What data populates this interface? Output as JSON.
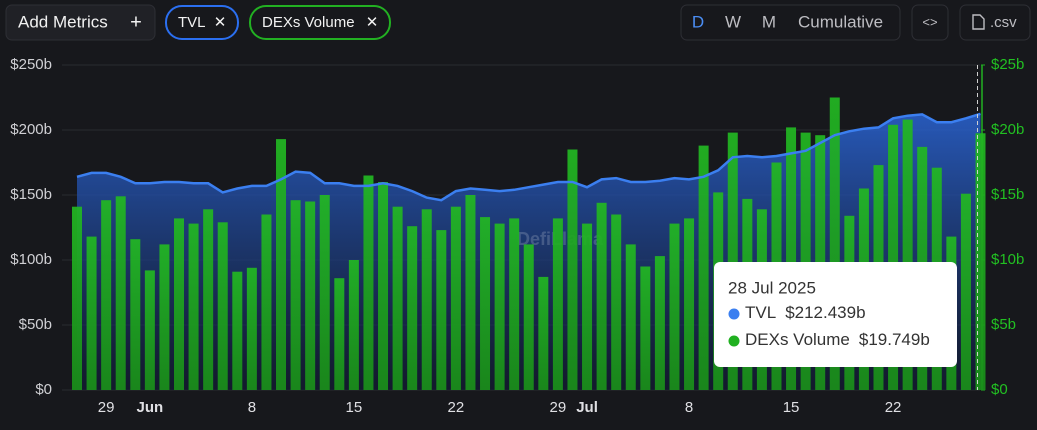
{
  "controls": {
    "add_metrics": "Add Metrics",
    "add_icon": "+",
    "remove_icon": "✕",
    "periods": [
      "D",
      "W",
      "M",
      "Cumulative"
    ],
    "embed": "<>",
    "csv": ".csv"
  },
  "chart_data": {
    "type": "combo",
    "watermark": "DefiLlama",
    "grid": true,
    "categories": [
      null,
      null,
      "29",
      null,
      null,
      "Jun",
      null,
      null,
      null,
      null,
      null,
      null,
      "8",
      null,
      null,
      null,
      null,
      null,
      null,
      "15",
      null,
      null,
      null,
      null,
      null,
      null,
      "22",
      null,
      null,
      null,
      null,
      null,
      null,
      "29",
      null,
      "Jul",
      null,
      null,
      null,
      null,
      null,
      null,
      "8",
      null,
      null,
      null,
      null,
      null,
      null,
      "15",
      null,
      null,
      null,
      null,
      null,
      null,
      "22",
      null,
      null,
      null,
      null,
      null,
      null
    ],
    "series": [
      {
        "name": "TVL",
        "type": "line",
        "color": "#3b7ff0",
        "values": [
          164,
          167,
          167,
          164,
          159,
          159,
          160,
          160,
          159,
          159,
          152,
          155,
          157,
          157,
          162,
          168,
          167,
          159,
          159,
          157,
          157,
          159,
          157,
          153,
          148,
          146,
          153,
          155,
          154,
          153,
          154,
          156,
          158,
          160,
          160,
          156,
          162,
          163,
          160,
          160,
          161,
          163,
          162,
          164,
          169,
          179,
          180,
          179,
          180,
          182,
          184,
          190,
          196,
          199,
          201,
          202,
          209,
          211,
          212,
          206,
          206,
          209,
          212.439
        ]
      },
      {
        "name": "DEXs Volume",
        "type": "bar",
        "axis": "y2",
        "color": "#20b020",
        "values": [
          14.1,
          11.8,
          14.6,
          14.9,
          11.6,
          9.2,
          11.2,
          13.2,
          12.8,
          13.9,
          12.9,
          9.1,
          9.4,
          13.5,
          19.3,
          14.6,
          14.5,
          15.0,
          8.6,
          10.0,
          16.5,
          16.0,
          14.1,
          12.6,
          13.9,
          12.3,
          14.1,
          15.0,
          13.3,
          12.8,
          13.2,
          11.2,
          8.7,
          13.2,
          18.5,
          12.8,
          14.4,
          13.5,
          11.2,
          9.5,
          10.3,
          12.8,
          13.2,
          18.8,
          15.2,
          19.8,
          14.7,
          13.9,
          17.5,
          20.2,
          19.8,
          19.6,
          22.5,
          13.4,
          15.5,
          17.3,
          20.4,
          20.8,
          18.7,
          17.1,
          11.8,
          15.1,
          19.749
        ]
      }
    ],
    "ylim": [
      0,
      250
    ],
    "yticks": [
      {
        "value": 0,
        "label": "$0"
      },
      {
        "value": 50,
        "label": "$50b"
      },
      {
        "value": 100,
        "label": "$100b"
      },
      {
        "value": 150,
        "label": "$150b"
      },
      {
        "value": 200,
        "label": "$200b"
      },
      {
        "value": 250,
        "label": "$250b"
      }
    ],
    "y2lim": [
      0,
      25
    ],
    "y2ticks": [
      {
        "value": 0,
        "label": "$0"
      },
      {
        "value": 5,
        "label": "$5b"
      },
      {
        "value": 10,
        "label": "$10b"
      },
      {
        "value": 15,
        "label": "$15b"
      },
      {
        "value": 20,
        "label": "$20b"
      },
      {
        "value": 25,
        "label": "$25b"
      }
    ],
    "tooltip": {
      "date": "28 Jul 2025",
      "labels": [
        "$212.439b",
        "$19.749b"
      ]
    }
  }
}
